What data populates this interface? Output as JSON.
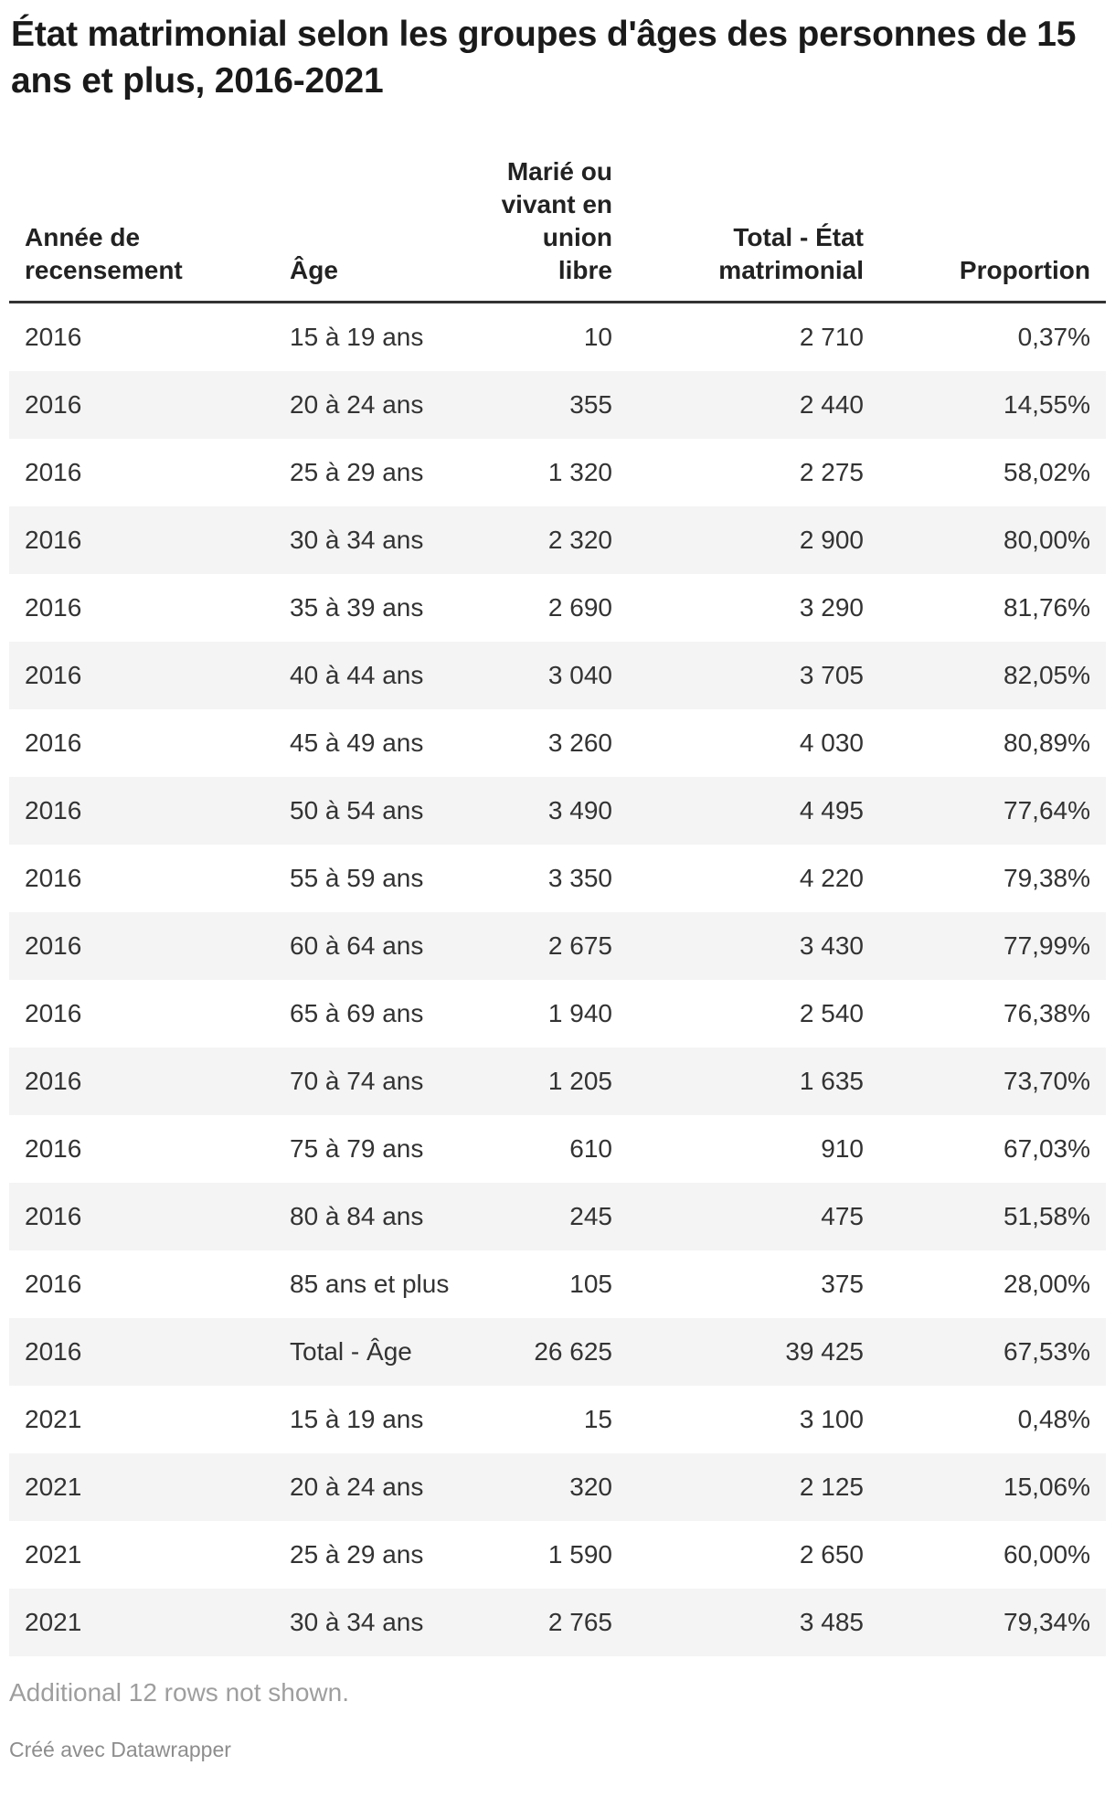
{
  "chart_data": {
    "type": "table",
    "title": "État matrimonial selon les groupes d'âges des personnes de 15 ans et plus, 2016-2021",
    "columns": [
      {
        "label": "Année de recensement",
        "align": "left"
      },
      {
        "label": "Âge",
        "align": "left"
      },
      {
        "label": "Marié ou vivant en union libre",
        "align": "right"
      },
      {
        "label": "Total - État matrimonial",
        "align": "right"
      },
      {
        "label": "Proportion",
        "align": "right"
      }
    ],
    "rows": [
      [
        "2016",
        "15 à 19 ans",
        "10",
        "2 710",
        "0,37%"
      ],
      [
        "2016",
        "20 à 24 ans",
        "355",
        "2 440",
        "14,55%"
      ],
      [
        "2016",
        "25 à 29 ans",
        "1 320",
        "2 275",
        "58,02%"
      ],
      [
        "2016",
        "30 à 34 ans",
        "2 320",
        "2 900",
        "80,00%"
      ],
      [
        "2016",
        "35 à 39 ans",
        "2 690",
        "3 290",
        "81,76%"
      ],
      [
        "2016",
        "40 à 44 ans",
        "3 040",
        "3 705",
        "82,05%"
      ],
      [
        "2016",
        "45 à 49 ans",
        "3 260",
        "4 030",
        "80,89%"
      ],
      [
        "2016",
        "50 à 54 ans",
        "3 490",
        "4 495",
        "77,64%"
      ],
      [
        "2016",
        "55 à 59 ans",
        "3 350",
        "4 220",
        "79,38%"
      ],
      [
        "2016",
        "60 à 64 ans",
        "2 675",
        "3 430",
        "77,99%"
      ],
      [
        "2016",
        "65 à 69 ans",
        "1 940",
        "2 540",
        "76,38%"
      ],
      [
        "2016",
        "70 à 74 ans",
        "1 205",
        "1 635",
        "73,70%"
      ],
      [
        "2016",
        "75 à 79 ans",
        "610",
        "910",
        "67,03%"
      ],
      [
        "2016",
        "80 à 84 ans",
        "245",
        "475",
        "51,58%"
      ],
      [
        "2016",
        "85 ans et plus",
        "105",
        "375",
        "28,00%"
      ],
      [
        "2016",
        "Total - Âge",
        "26 625",
        "39 425",
        "67,53%"
      ],
      [
        "2021",
        "15 à 19 ans",
        "15",
        "3 100",
        "0,48%"
      ],
      [
        "2021",
        "20 à 24 ans",
        "320",
        "2 125",
        "15,06%"
      ],
      [
        "2021",
        "25 à 29 ans",
        "1 590",
        "2 650",
        "60,00%"
      ],
      [
        "2021",
        "30 à 34 ans",
        "2 765",
        "3 485",
        "79,34%"
      ]
    ],
    "layout_hints": {
      "striped_rows": true,
      "header_rule": "thick-bottom-border",
      "column_alignments": [
        "left",
        "left",
        "right",
        "right",
        "right"
      ]
    }
  },
  "footer": {
    "note": "Additional 12 rows not shown.",
    "attribution": "Créé avec Datawrapper"
  },
  "colors": {
    "title_text": "#1a1a1a",
    "body_text": "#333333",
    "stripe_background": "#f4f4f4",
    "header_border": "#333333",
    "note_text": "#9e9e9e",
    "attribution_text": "#8d8d8d",
    "page_background": "#ffffff"
  }
}
